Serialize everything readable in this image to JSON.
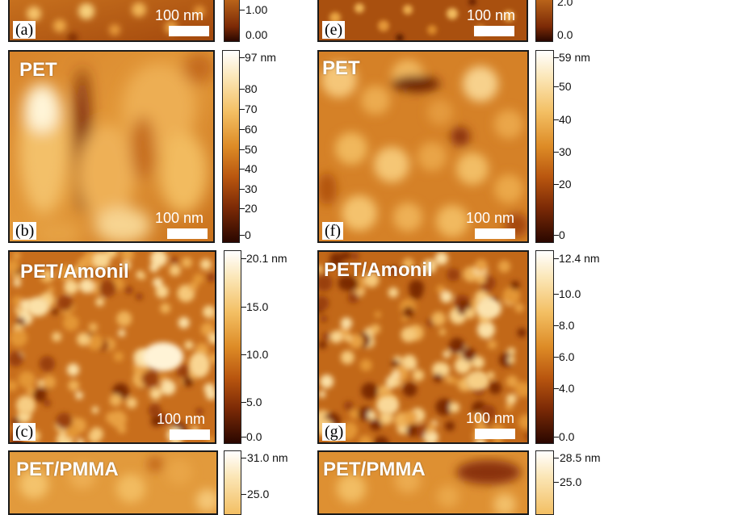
{
  "panels": {
    "a": {
      "label": "(a)",
      "scalebar": "100 nm"
    },
    "e": {
      "label": "(e)",
      "scalebar": "100 nm"
    },
    "b": {
      "title": "PET",
      "label": "(b)",
      "scalebar": "100 nm"
    },
    "f": {
      "title": "PET",
      "label": "(f)",
      "scalebar": "100 nm"
    },
    "c": {
      "title": "PET/Amonil",
      "label": "(c)",
      "scalebar": "100 nm"
    },
    "g": {
      "title": "PET/Amonil",
      "label": "(g)",
      "scalebar": "100 nm"
    },
    "d": {
      "title": "PET/PMMA"
    },
    "h": {
      "title": "PET/PMMA"
    }
  },
  "colorbars": {
    "a": [
      "1.00",
      "0.00"
    ],
    "e": [
      "2.0",
      "0.0"
    ],
    "b": [
      "97 nm",
      "80",
      "70",
      "60",
      "50",
      "40",
      "30",
      "20",
      "0"
    ],
    "f": [
      "59 nm",
      "50",
      "40",
      "30",
      "20",
      "0"
    ],
    "c": [
      "20.1 nm",
      "15.0",
      "10.0",
      "5.0",
      "0.0"
    ],
    "g": [
      "12.4 nm",
      "10.0",
      "8.0",
      "6.0",
      "4.0",
      "0.0"
    ],
    "d": [
      "31.0 nm",
      "25.0"
    ],
    "h": [
      "28.5 nm",
      "25.0"
    ]
  },
  "colors": {
    "high": "#ffffff",
    "mid": "#dd8b26",
    "low": "#2a0700"
  }
}
